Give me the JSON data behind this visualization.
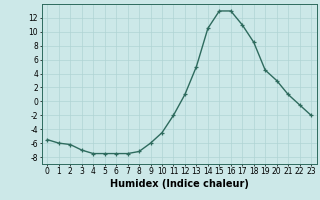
{
  "x": [
    0,
    1,
    2,
    3,
    4,
    5,
    6,
    7,
    8,
    9,
    10,
    11,
    12,
    13,
    14,
    15,
    16,
    17,
    18,
    19,
    20,
    21,
    22,
    23
  ],
  "y": [
    -5.5,
    -6.0,
    -6.2,
    -7.0,
    -7.5,
    -7.5,
    -7.5,
    -7.5,
    -7.2,
    -6.0,
    -4.5,
    -2.0,
    1.0,
    5.0,
    10.5,
    13.0,
    13.0,
    11.0,
    8.5,
    4.5,
    3.0,
    1.0,
    -0.5,
    -2.0
  ],
  "line_color": "#2e6b5e",
  "marker": "+",
  "marker_size": 3.5,
  "marker_edge_width": 0.9,
  "background_color": "#cce8e8",
  "grid_color": "#b0d4d4",
  "xlabel": "Humidex (Indice chaleur)",
  "ylabel": "",
  "xlim": [
    -0.5,
    23.5
  ],
  "ylim": [
    -9,
    14
  ],
  "yticks": [
    -8,
    -6,
    -4,
    -2,
    0,
    2,
    4,
    6,
    8,
    10,
    12
  ],
  "xticks": [
    0,
    1,
    2,
    3,
    4,
    5,
    6,
    7,
    8,
    9,
    10,
    11,
    12,
    13,
    14,
    15,
    16,
    17,
    18,
    19,
    20,
    21,
    22,
    23
  ],
  "tick_fontsize": 5.5,
  "xlabel_fontsize": 7.0,
  "line_width": 1.0,
  "spine_color": "#2e6b5e"
}
